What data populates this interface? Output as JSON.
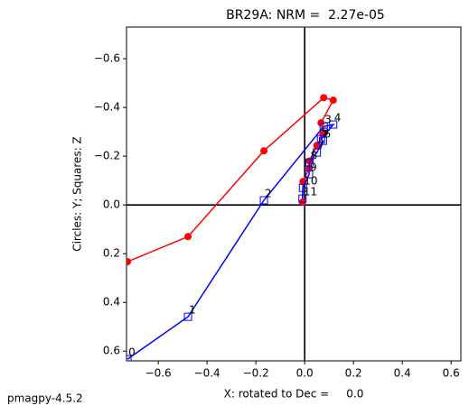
{
  "chart_data": {
    "type": "zijderveld",
    "title": "BR29A: NRM =  2.27e-05",
    "xlabel": "X: rotated to Dec =     0.0",
    "ylabel": "Circles: Y; Squares: Z",
    "footer": "pmagpy-4.5.2",
    "x": [
      -0.726,
      -0.478,
      -0.167,
      0.078,
      0.117,
      0.067,
      0.075,
      0.05,
      0.02,
      0.018,
      -0.007,
      -0.009
    ],
    "series": [
      {
        "name": "Y",
        "color": "#ff0000",
        "marker": "circle",
        "values": [
          0.233,
          0.13,
          -0.222,
          -0.44,
          -0.43,
          -0.337,
          -0.29,
          -0.244,
          -0.18,
          -0.15,
          -0.096,
          -0.011
        ]
      },
      {
        "name": "Z",
        "color": "#0000ff",
        "marker": "square",
        "values": [
          0.633,
          0.459,
          -0.019,
          -0.322,
          -0.33,
          -0.27,
          -0.263,
          -0.215,
          -0.174,
          -0.126,
          -0.07,
          -0.026
        ]
      }
    ],
    "point_labels": [
      "0",
      "1",
      "2",
      "3",
      "4",
      "5",
      "6",
      "7",
      "8",
      "9",
      "10",
      "11"
    ],
    "xlim": [
      -0.73,
      0.64
    ],
    "ylim": [
      -0.73,
      0.64
    ],
    "y_inverted": true,
    "xticks": [
      {
        "value": -0.6,
        "label": "−0.6"
      },
      {
        "value": -0.4,
        "label": "−0.4"
      },
      {
        "value": -0.2,
        "label": "−0.2"
      },
      {
        "value": 0,
        "label": "0.0"
      },
      0.2,
      0.4,
      0.6
    ],
    "yticks": [
      {
        "value": -0.6,
        "label": "−0.6"
      },
      {
        "value": -0.4,
        "label": "−0.4"
      },
      {
        "value": -0.2,
        "label": "−0.2"
      },
      {
        "value": 0,
        "label": "0.0"
      },
      0.2,
      0.4,
      0.6
    ]
  }
}
